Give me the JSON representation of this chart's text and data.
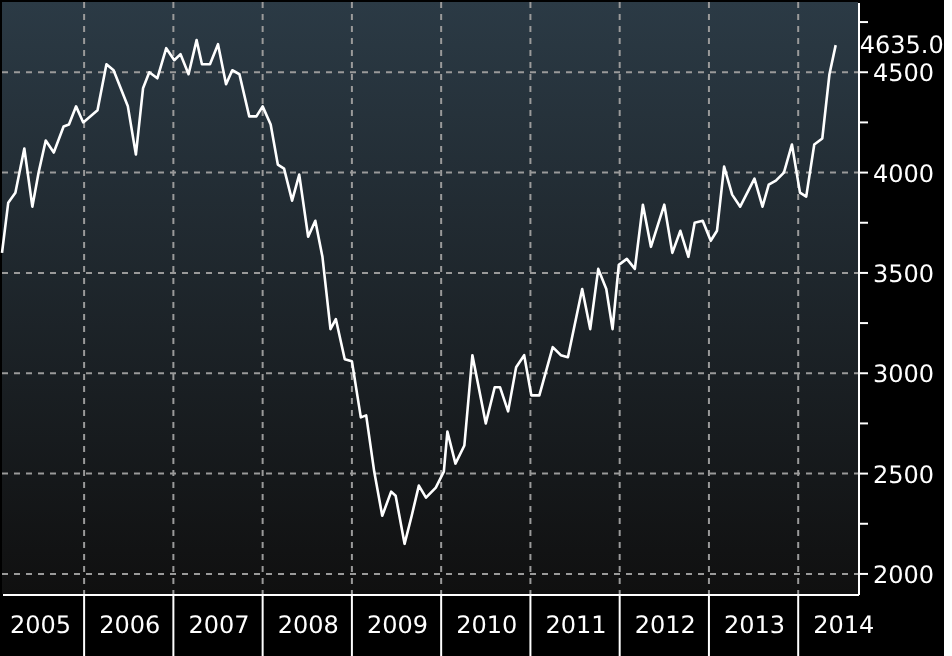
{
  "chart_data": {
    "type": "line",
    "x": [
      2005.08,
      2005.15,
      2005.23,
      2005.33,
      2005.42,
      2005.49,
      2005.57,
      2005.66,
      2005.77,
      2005.83,
      2005.91,
      2005.99,
      2006.15,
      2006.25,
      2006.33,
      2006.49,
      2006.58,
      2006.66,
      2006.73,
      2006.82,
      2006.92,
      2007.01,
      2007.08,
      2007.17,
      2007.26,
      2007.32,
      2007.41,
      2007.5,
      2007.59,
      2007.66,
      2007.74,
      2007.85,
      2007.93,
      2008.0,
      2008.09,
      2008.17,
      2008.24,
      2008.33,
      2008.41,
      2008.51,
      2008.59,
      2008.67,
      2008.76,
      2008.82,
      2008.92,
      2009.0,
      2009.1,
      2009.16,
      2009.25,
      2009.34,
      2009.44,
      2009.49,
      2009.59,
      2009.67,
      2009.75,
      2009.83,
      2009.94,
      2010.03,
      2010.07,
      2010.16,
      2010.26,
      2010.35,
      2010.5,
      2010.6,
      2010.66,
      2010.75,
      2010.84,
      2010.93,
      2011.01,
      2011.1,
      2011.25,
      2011.34,
      2011.42,
      2011.58,
      2011.67,
      2011.76,
      2011.85,
      2011.92,
      2011.99,
      2012.08,
      2012.17,
      2012.26,
      2012.35,
      2012.5,
      2012.59,
      2012.68,
      2012.77,
      2012.84,
      2012.93,
      2013.02,
      2013.09,
      2013.17,
      2013.26,
      2013.35,
      2013.51,
      2013.6,
      2013.67,
      2013.75,
      2013.84,
      2013.93,
      2014.02,
      2014.09,
      2014.18,
      2014.27,
      2014.35,
      2014.42
    ],
    "series": [
      {
        "color": "#ffffff",
        "values": [
          3600,
          3850,
          3900,
          4120,
          3830,
          4000,
          4160,
          4100,
          4230,
          4240,
          4330,
          4250,
          4310,
          4540,
          4510,
          4330,
          4090,
          4420,
          4500,
          4470,
          4620,
          4560,
          4590,
          4490,
          4660,
          4540,
          4540,
          4640,
          4440,
          4510,
          4490,
          4280,
          4280,
          4330,
          4240,
          4040,
          4020,
          3860,
          3990,
          3680,
          3760,
          3580,
          3220,
          3270,
          3070,
          3060,
          2780,
          2790,
          2510,
          2290,
          2410,
          2390,
          2150,
          2290,
          2440,
          2380,
          2430,
          2510,
          2710,
          2550,
          2640,
          3090,
          2750,
          2930,
          2930,
          2810,
          3030,
          3090,
          2890,
          2890,
          3130,
          3090,
          3080,
          3420,
          3220,
          3520,
          3420,
          3220,
          3540,
          3570,
          3520,
          3840,
          3630,
          3840,
          3600,
          3710,
          3580,
          3750,
          3760,
          3660,
          3710,
          4030,
          3890,
          3830,
          3970,
          3830,
          3940,
          3960,
          4000,
          4140,
          3900,
          3880,
          4140,
          4170,
          4490,
          4635
        ],
        "value_labels": [
          null,
          null,
          null,
          null,
          null,
          null,
          null,
          null,
          null,
          null,
          null,
          null,
          null,
          null,
          null,
          null,
          null,
          null,
          null,
          null,
          null,
          null,
          null,
          null,
          null,
          null,
          null,
          null,
          null,
          null,
          null,
          null,
          null,
          null,
          null,
          null,
          null,
          null,
          null,
          null,
          null,
          null,
          null,
          null,
          null,
          null,
          null,
          null,
          null,
          null,
          null,
          null,
          null,
          null,
          null,
          null,
          null,
          null,
          null,
          null,
          null,
          null,
          null,
          null,
          null,
          null,
          null,
          null,
          null,
          null,
          null,
          null,
          null,
          null,
          null,
          null,
          null,
          null,
          null,
          null,
          null,
          null,
          null,
          null,
          null,
          null,
          null,
          null,
          null,
          null,
          null,
          null,
          null,
          null,
          null,
          null,
          null,
          null,
          null,
          null,
          null,
          null,
          null,
          null,
          null,
          "4635.0"
        ]
      }
    ],
    "xlim": [
      2005.08,
      2014.67
    ],
    "xticks": [
      {
        "value": 2005.5,
        "label": "2005"
      },
      {
        "value": 2006,
        "label": null
      },
      {
        "value": 2006.5,
        "label": "2006"
      },
      {
        "value": 2007,
        "label": null
      },
      {
        "value": 2007.5,
        "label": "2007"
      },
      {
        "value": 2008,
        "label": null
      },
      {
        "value": 2008.5,
        "label": "2008"
      },
      {
        "value": 2009,
        "label": null
      },
      {
        "value": 2009.5,
        "label": "2009"
      },
      {
        "value": 2010,
        "label": null
      },
      {
        "value": 2010.5,
        "label": "2010"
      },
      {
        "value": 2011,
        "label": null
      },
      {
        "value": 2011.5,
        "label": "2011"
      },
      {
        "value": 2012,
        "label": null
      },
      {
        "value": 2012.5,
        "label": "2012"
      },
      {
        "value": 2013,
        "label": null
      },
      {
        "value": 2013.5,
        "label": "2013"
      },
      {
        "value": 2014,
        "label": null
      },
      {
        "value": 2014.5,
        "label": "2014"
      }
    ],
    "ylim": [
      1900,
      4850
    ],
    "yticks": [
      2000,
      {
        "value": 2250,
        "label": null
      },
      2500,
      {
        "value": 2750,
        "label": null
      },
      3000,
      {
        "value": 3250,
        "label": null
      },
      3500,
      {
        "value": 3750,
        "label": null
      },
      4000,
      {
        "value": 4250,
        "label": null
      },
      4500,
      {
        "value": 4750,
        "label": null
      }
    ],
    "grid": true,
    "marker": "none",
    "line_style": "solid"
  }
}
